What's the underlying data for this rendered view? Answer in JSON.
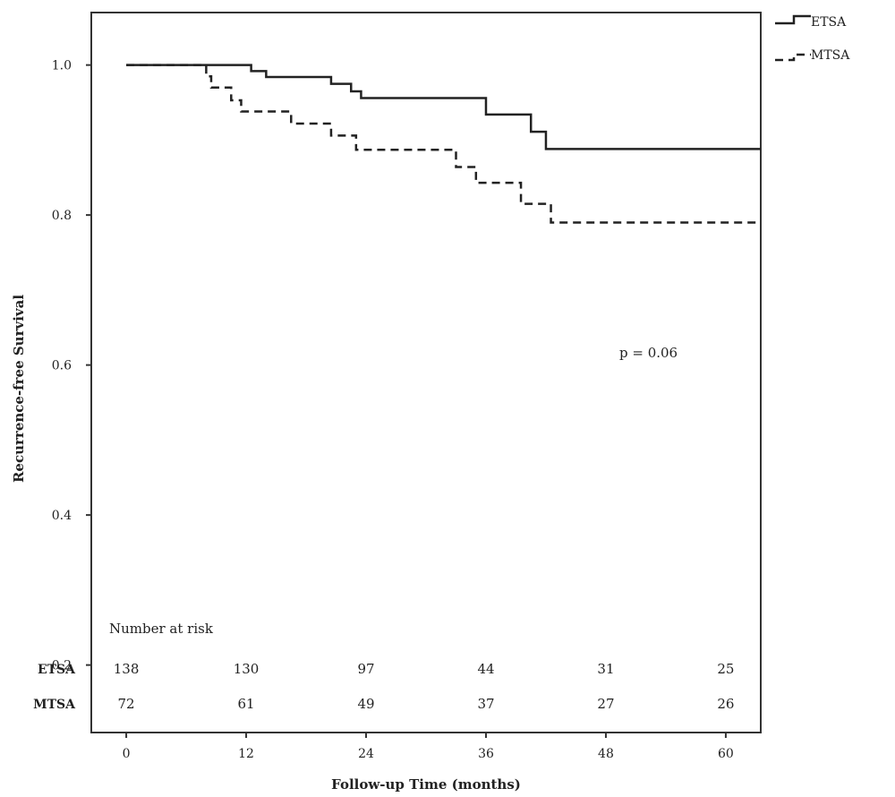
{
  "chart_data": {
    "type": "line",
    "xlabel": "Follow-up Time (months)",
    "ylabel": "Recurrence-free Survival",
    "xlim": [
      -3.5,
      63.5
    ],
    "ylim": [
      0.11,
      1.07
    ],
    "x_ticks": [
      "0",
      "12",
      "24",
      "36",
      "48",
      "60"
    ],
    "x_tick_values": [
      0,
      12,
      24,
      36,
      48,
      60
    ],
    "y_ticks": [
      "0.2",
      "0.4",
      "0.6",
      "0.8",
      "1.0"
    ],
    "y_tick_values": [
      0.2,
      0.4,
      0.6,
      0.8,
      1.0
    ],
    "grid": false,
    "legend_position": "top-right, outside plot",
    "annotation": "p = 0.06",
    "series": [
      {
        "name": "ETSA",
        "style": "solid",
        "color": "#222222",
        "steps": [
          [
            0,
            1.0
          ],
          [
            12.5,
            0.992
          ],
          [
            14,
            0.984
          ],
          [
            20.5,
            0.975
          ],
          [
            22.5,
            0.965
          ],
          [
            23.5,
            0.956
          ],
          [
            36,
            0.934
          ],
          [
            40.5,
            0.911
          ],
          [
            42,
            0.888
          ],
          [
            63.5,
            0.888
          ]
        ]
      },
      {
        "name": "MTSA",
        "style": "dashed",
        "color": "#222222",
        "steps": [
          [
            0,
            1.0
          ],
          [
            8,
            0.985
          ],
          [
            8.5,
            0.97
          ],
          [
            10.5,
            0.953
          ],
          [
            11.5,
            0.938
          ],
          [
            16.5,
            0.922
          ],
          [
            20.5,
            0.906
          ],
          [
            23,
            0.887
          ],
          [
            33,
            0.864
          ],
          [
            35,
            0.843
          ],
          [
            39.5,
            0.815
          ],
          [
            42.5,
            0.79
          ],
          [
            63.5,
            0.79
          ]
        ]
      }
    ],
    "risk_table": {
      "title": "Number at risk",
      "timepoints": [
        0,
        12,
        24,
        36,
        48,
        60
      ],
      "rows": [
        {
          "label": "ETSA",
          "values": [
            "138",
            "130",
            "97",
            "44",
            "31",
            "25"
          ]
        },
        {
          "label": "MTSA",
          "values": [
            "72",
            "61",
            "49",
            "37",
            "27",
            "26"
          ]
        }
      ]
    }
  }
}
